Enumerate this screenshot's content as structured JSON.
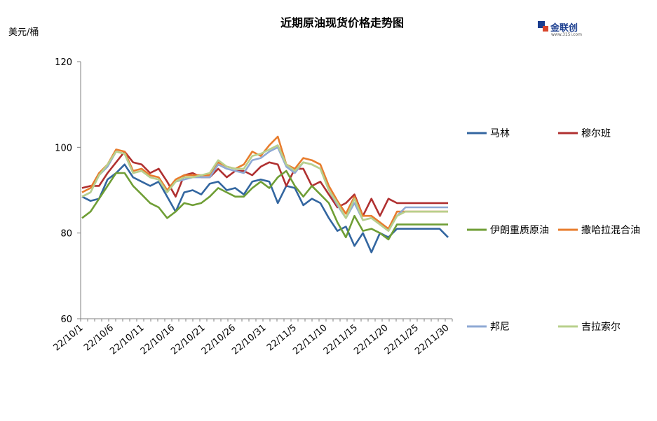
{
  "chart_data": {
    "type": "line",
    "title": "近期原油现货价格走势图",
    "ylabel": "美元/桶",
    "ylim": [
      60,
      120
    ],
    "yticks": [
      60,
      80,
      100,
      120
    ],
    "grid": false,
    "x_labels": [
      "22/10/1",
      "22/10/6",
      "22/10/11",
      "22/10/16",
      "22/10/21",
      "22/10/26",
      "22/10/31",
      "22/11/5",
      "22/11/10",
      "22/11/15",
      "22/11/20",
      "22/11/25",
      "22/11/30"
    ],
    "x": [
      "10/1",
      "10/3",
      "10/4",
      "10/5",
      "10/6",
      "10/7",
      "10/10",
      "10/11",
      "10/12",
      "10/13",
      "10/14",
      "10/17",
      "10/18",
      "10/19",
      "10/20",
      "10/21",
      "10/24",
      "10/25",
      "10/26",
      "10/27",
      "10/28",
      "10/31",
      "11/1",
      "11/2",
      "11/3",
      "11/4",
      "11/7",
      "11/8",
      "11/9",
      "11/10",
      "11/11",
      "11/14",
      "11/15",
      "11/16",
      "11/17",
      "11/18",
      "11/21",
      "11/22",
      "11/23",
      "11/24",
      "11/25",
      "11/28",
      "11/29",
      "11/30"
    ],
    "series": [
      {
        "name": "马林",
        "color": "#3366a0",
        "values": [
          88.5,
          87.5,
          88.0,
          92.5,
          94.0,
          96.0,
          93.0,
          92.0,
          91.0,
          92.0,
          88.5,
          85.0,
          89.5,
          90.0,
          89.0,
          91.5,
          92.0,
          90.0,
          90.5,
          89.0,
          92.0,
          92.5,
          92.0,
          87.0,
          91.0,
          90.5,
          86.5,
          88.0,
          87.0,
          83.5,
          80.5,
          81.5,
          77.0,
          80.0,
          75.5,
          80.0,
          79.0,
          81.0,
          81.0,
          81.0,
          81.0,
          81.0,
          81.0,
          79.0
        ]
      },
      {
        "name": "穆尔班",
        "color": "#b03030",
        "values": [
          90.5,
          91.0,
          91.0,
          94.0,
          96.5,
          99.0,
          96.5,
          96.0,
          94.0,
          95.0,
          92.0,
          88.5,
          93.5,
          94.0,
          93.0,
          93.0,
          95.0,
          93.0,
          94.5,
          94.5,
          93.5,
          95.5,
          96.5,
          96.0,
          91.0,
          95.0,
          95.0,
          91.0,
          92.0,
          89.0,
          86.0,
          87.0,
          89.0,
          84.0,
          88.0,
          84.0,
          88.0,
          87.0,
          87.0,
          87.0,
          87.0,
          87.0,
          87.0,
          87.0
        ]
      },
      {
        "name": "伊朗重质原油",
        "color": "#6f9e35",
        "values": [
          83.5,
          85.0,
          88.0,
          91.0,
          94.0,
          94.0,
          91.0,
          89.0,
          87.0,
          86.0,
          83.5,
          85.0,
          87.0,
          86.5,
          87.0,
          88.5,
          90.5,
          89.5,
          88.5,
          88.5,
          90.5,
          92.0,
          90.5,
          93.0,
          94.5,
          91.0,
          88.5,
          91.0,
          89.0,
          87.0,
          82.5,
          79.0,
          84.0,
          80.5,
          81.0,
          80.0,
          78.5,
          82.0,
          82.0,
          82.0,
          82.0,
          82.0,
          82.0,
          82.0
        ]
      },
      {
        "name": "撒哈拉混合油",
        "color": "#e87c2c",
        "values": [
          89.5,
          90.5,
          94.0,
          96.0,
          99.5,
          99.0,
          94.5,
          95.0,
          93.5,
          93.0,
          90.0,
          92.5,
          93.5,
          93.5,
          93.5,
          93.5,
          96.5,
          95.5,
          95.0,
          96.0,
          99.0,
          98.0,
          100.5,
          102.5,
          96.0,
          95.0,
          97.5,
          97.0,
          96.0,
          91.0,
          87.5,
          84.5,
          88.5,
          84.0,
          84.0,
          82.5,
          81.0,
          85.0,
          85.0,
          85.0,
          85.0,
          85.0,
          85.0,
          85.0
        ]
      },
      {
        "name": "邦尼",
        "color": "#8fa9d4",
        "values": [
          88.5,
          89.5,
          93.5,
          95.5,
          99.0,
          98.5,
          94.0,
          94.5,
          93.0,
          92.5,
          89.5,
          92.0,
          92.5,
          93.0,
          93.0,
          93.0,
          96.0,
          95.0,
          94.5,
          94.0,
          97.0,
          97.5,
          99.0,
          100.0,
          95.5,
          94.0,
          96.5,
          96.0,
          95.0,
          90.0,
          86.5,
          83.5,
          87.0,
          83.0,
          83.5,
          82.0,
          80.5,
          84.0,
          86.0,
          86.0,
          86.0,
          86.0,
          86.0,
          86.0
        ]
      },
      {
        "name": "吉拉索尔",
        "color": "#b8d08c",
        "values": [
          88.5,
          89.5,
          93.5,
          96.0,
          99.0,
          98.5,
          94.0,
          94.5,
          93.0,
          92.5,
          89.5,
          92.0,
          93.0,
          93.0,
          93.5,
          94.0,
          97.0,
          95.5,
          95.0,
          95.0,
          98.0,
          98.5,
          99.5,
          100.5,
          96.0,
          94.5,
          96.5,
          96.0,
          95.0,
          90.0,
          87.0,
          83.5,
          88.0,
          83.0,
          83.5,
          82.0,
          80.5,
          84.0,
          85.0,
          85.0,
          85.0,
          85.0,
          85.0,
          85.0
        ]
      }
    ],
    "legend_position": "right"
  },
  "logo": {
    "name": "金联创",
    "sub": "www.315i.com"
  }
}
